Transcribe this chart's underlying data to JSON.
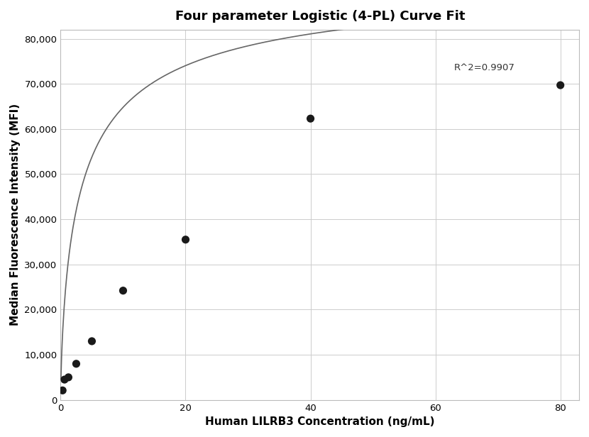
{
  "title": "Four parameter Logistic (4-PL) Curve Fit",
  "xlabel": "Human LILRB3 Concentration (ng/mL)",
  "ylabel": "Median Fluorescence Intensity (MFI)",
  "scatter_x": [
    0.3125,
    0.625,
    1.25,
    2.5,
    5.0,
    10.0,
    20.0,
    40.0,
    80.0
  ],
  "scatter_y": [
    2100,
    4500,
    5000,
    8000,
    13000,
    24200,
    35500,
    62300,
    69700
  ],
  "xlim": [
    0,
    83
  ],
  "ylim": [
    0,
    82000
  ],
  "yticks": [
    0,
    10000,
    20000,
    30000,
    40000,
    50000,
    60000,
    70000,
    80000
  ],
  "xticks": [
    0,
    20,
    40,
    60,
    80
  ],
  "r2_label": "R^2=0.9907",
  "r2_x": 63,
  "r2_y": 73500,
  "curve_color": "#666666",
  "scatter_color": "#1a1a1a",
  "background_color": "#ffffff",
  "grid_color": "#cccccc",
  "title_fontsize": 13,
  "label_fontsize": 11,
  "4pl_A": 500,
  "4pl_B": 0.72,
  "4pl_C": 3.5,
  "4pl_D": 95000
}
